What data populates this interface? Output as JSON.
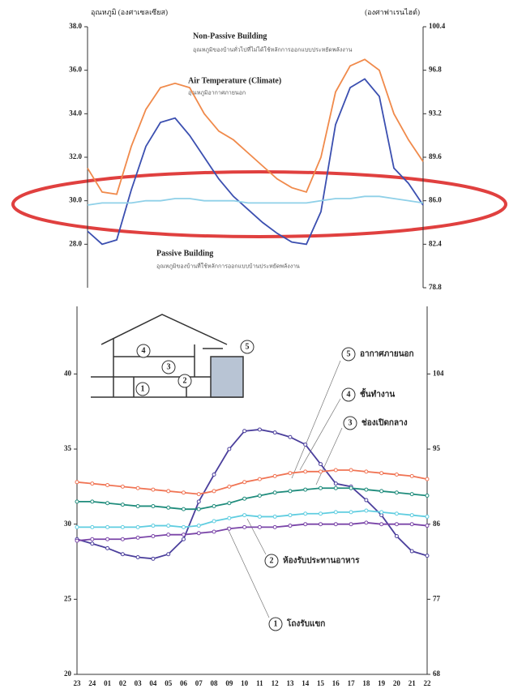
{
  "chart_data": [
    {
      "type": "line",
      "y_label": "อุณหภูมิ (องศาเซลเซียส)",
      "y2_label": "(องศาฟาเรนไฮต์)",
      "annotations": [
        {
          "title": "Non-Passive Building",
          "text": "อุณหภูมิของบ้านทั่วไปที่ไม่ได้ใช้หลักการออกแบบประหยัดพลังงาน"
        },
        {
          "title": "Air Temperature (Climate)",
          "text": "อุณหภูมิอากาศภายนอก"
        },
        {
          "title": "Passive Building",
          "text": "อุณหภูมิของบ้านที่ใช้หลักการออกแบบบ้านประหยัดพลังงาน"
        }
      ],
      "categories": [
        null,
        null,
        null,
        null,
        null,
        null,
        null,
        null,
        null,
        null,
        null,
        null,
        null,
        null,
        null,
        null,
        null,
        null,
        null,
        null,
        null,
        null,
        null,
        null
      ],
      "series": [
        {
          "name": "Air Temperature (Climate)",
          "color": "#f08a4b",
          "values": [
            31.5,
            30.4,
            30.3,
            32.5,
            34.2,
            35.2,
            35.4,
            35.2,
            34.0,
            33.2,
            32.8,
            32.2,
            31.6,
            31.0,
            30.6,
            30.4,
            32.0,
            35.0,
            36.2,
            36.5,
            36.0,
            34.0,
            32.8,
            31.8
          ]
        },
        {
          "name": "Non-Passive Building",
          "color": "#3b4fb0",
          "values": [
            28.6,
            28.0,
            28.2,
            30.5,
            32.5,
            33.6,
            33.8,
            33.0,
            32.0,
            31.0,
            30.2,
            29.6,
            29.0,
            28.5,
            28.1,
            28.0,
            29.5,
            33.5,
            35.2,
            35.6,
            34.8,
            31.5,
            30.8,
            29.8
          ]
        },
        {
          "name": "Passive Building",
          "color": "#8fd0e8",
          "values": [
            29.8,
            29.9,
            29.9,
            29.9,
            30.0,
            30.0,
            30.1,
            30.1,
            30.0,
            30.0,
            30.0,
            29.9,
            29.9,
            29.9,
            29.9,
            29.9,
            30.0,
            30.1,
            30.1,
            30.2,
            30.2,
            30.1,
            30.0,
            29.9
          ]
        }
      ],
      "ylim": [
        26,
        38
      ],
      "yticks": [
        {
          "value": 28,
          "label": "28.0"
        },
        {
          "value": 30,
          "label": "30.0"
        },
        {
          "value": 32,
          "label": "32.0"
        },
        {
          "value": 34,
          "label": "34.0"
        },
        {
          "value": 36,
          "label": "36.0"
        },
        {
          "value": 38,
          "label": "38.0"
        }
      ],
      "y2lim": [
        78.8,
        100.4
      ],
      "y2ticks": [
        78.8,
        82.4,
        {
          "value": 86,
          "label": "86.0"
        },
        89.6,
        93.2,
        96.8,
        100.4
      ]
    },
    {
      "type": "line",
      "categories": [
        "23",
        "24",
        "01",
        "02",
        "03",
        "04",
        "05",
        "06",
        "07",
        "08",
        "09",
        "10",
        "11",
        "12",
        "13",
        "14",
        "15",
        "16",
        "17",
        "18",
        "19",
        "20",
        "21",
        "22"
      ],
      "series": [
        {
          "name": "โถงรับแขก",
          "number": "1",
          "color": "#4b3f9c",
          "values": [
            29.0,
            28.7,
            28.4,
            28.0,
            27.8,
            27.7,
            28.0,
            29.0,
            31.5,
            33.3,
            35.0,
            36.2,
            36.3,
            36.1,
            35.8,
            35.3,
            34.0,
            32.7,
            32.5,
            31.6,
            30.6,
            29.2,
            28.2,
            27.9
          ]
        },
        {
          "name": "ห้องรับประทานอาหาร",
          "number": "2",
          "color": "#7a45a8",
          "values": [
            28.9,
            29.0,
            29.0,
            29.0,
            29.1,
            29.2,
            29.3,
            29.3,
            29.4,
            29.5,
            29.7,
            29.8,
            29.8,
            29.8,
            29.9,
            30.0,
            30.0,
            30.0,
            30.0,
            30.1,
            30.0,
            30.0,
            30.0,
            29.9
          ]
        },
        {
          "name": "ช่องเปิดกลาง",
          "number": "3",
          "color": "#5fcde0",
          "values": [
            29.8,
            29.8,
            29.8,
            29.8,
            29.8,
            29.9,
            29.9,
            29.8,
            29.9,
            30.2,
            30.4,
            30.6,
            30.5,
            30.5,
            30.6,
            30.7,
            30.7,
            30.8,
            30.8,
            30.9,
            30.8,
            30.7,
            30.6,
            30.5
          ]
        },
        {
          "name": "ชั้นทำงาน",
          "number": "4",
          "color": "#1f8c7c",
          "values": [
            31.5,
            31.5,
            31.4,
            31.3,
            31.2,
            31.2,
            31.1,
            31.0,
            31.0,
            31.2,
            31.4,
            31.7,
            31.9,
            32.1,
            32.2,
            32.3,
            32.4,
            32.4,
            32.4,
            32.3,
            32.2,
            32.1,
            32.0,
            31.9
          ]
        },
        {
          "name": "อากาศภายนอก",
          "number": "5",
          "color": "#f07454",
          "values": [
            32.8,
            32.7,
            32.6,
            32.5,
            32.4,
            32.3,
            32.2,
            32.1,
            32.0,
            32.2,
            32.5,
            32.8,
            33.0,
            33.2,
            33.4,
            33.5,
            33.5,
            33.6,
            33.6,
            33.5,
            33.4,
            33.3,
            33.2,
            33.0
          ]
        }
      ],
      "ylim": [
        20,
        44.5
      ],
      "yticks": [
        20,
        25,
        30,
        35,
        40
      ],
      "y2lim": [
        68,
        112.1
      ],
      "y2ticks": [
        68,
        77,
        86,
        95,
        104
      ],
      "markers": true
    }
  ]
}
